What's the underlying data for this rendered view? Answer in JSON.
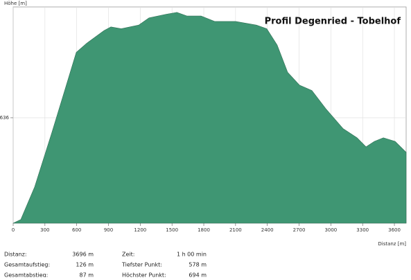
{
  "chart_data": {
    "type": "area",
    "title": "Profil Degenried - Tobelhof",
    "y_label": "Höhe [m]",
    "x_label": "Distanz [m]",
    "x": [
      0,
      72,
      203,
      366,
      497,
      596,
      694,
      858,
      923,
      1021,
      1185,
      1283,
      1446,
      1545,
      1643,
      1774,
      1905,
      2101,
      2297,
      2395,
      2493,
      2592,
      2703,
      2821,
      2952,
      3116,
      3247,
      3332,
      3411,
      3496,
      3607,
      3711
    ],
    "series": [
      {
        "name": "Höhe",
        "color": "#3f9673",
        "values": [
          578,
          580,
          598,
          628,
          653,
          672,
          677,
          684,
          686,
          685,
          687,
          691,
          693,
          694,
          692,
          692,
          689,
          689,
          687,
          685,
          676,
          661,
          654,
          651,
          641,
          630,
          625,
          620,
          623,
          625,
          623,
          617
        ]
      }
    ],
    "xlim": [
      0,
      3711
    ],
    "ylim": [
      578,
      697
    ],
    "xticks": [
      0,
      300,
      600,
      900,
      1200,
      1500,
      1800,
      2100,
      2400,
      2700,
      3000,
      3300,
      3600
    ],
    "yticks": [
      636
    ],
    "grid": true
  },
  "stats": [
    {
      "label": "Distanz:",
      "value": "3696 m"
    },
    {
      "label": "Gesamtaufstieg:",
      "value": "126 m"
    },
    {
      "label": "Gesamtabstieg:",
      "value": "87 m"
    },
    {
      "label": "Zeit:",
      "value": "1 h 00 min"
    },
    {
      "label": "Tiefster Punkt:",
      "value": "578 m"
    },
    {
      "label": "Höchster Punkt:",
      "value": "694 m"
    }
  ]
}
